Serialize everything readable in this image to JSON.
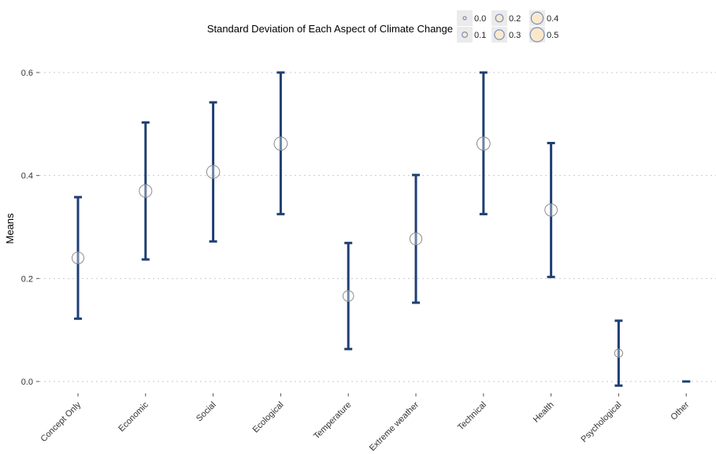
{
  "chart_data": {
    "type": "errorbar",
    "title": "",
    "xlabel": "",
    "ylabel": "Means",
    "ylim": [
      -0.0,
      0.6
    ],
    "y_ticks": [
      "0.0",
      "0.2",
      "0.4",
      "0.6"
    ],
    "y_tick_values": [
      0.0,
      0.2,
      0.4,
      0.6
    ],
    "grid": "horizontal dotted",
    "categories": [
      "Concept Only",
      "Economic",
      "Social",
      "Ecological",
      "Temperature",
      "Extreme weather",
      "Technical",
      "Health",
      "Psychological",
      "Other"
    ],
    "means": [
      0.24,
      0.37,
      0.407,
      0.462,
      0.166,
      0.277,
      0.462,
      0.333,
      0.055,
      0.0
    ],
    "lower": [
      0.122,
      0.237,
      0.272,
      0.325,
      0.063,
      0.153,
      0.325,
      0.203,
      -0.008,
      0.0
    ],
    "upper": [
      0.358,
      0.503,
      0.542,
      0.6,
      0.269,
      0.401,
      0.6,
      0.463,
      0.118,
      0.0
    ],
    "sd": [
      0.36,
      0.39,
      0.4,
      0.41,
      0.32,
      0.37,
      0.41,
      0.38,
      0.23,
      0.0
    ],
    "colors": {
      "errorbar": "#1f3f73",
      "point_stroke": "#8c8c8c",
      "grid": "#c9c9c9",
      "legend_fill": "#fde8c8",
      "legend_stroke": "#7b8fb8"
    },
    "legend": {
      "title": "Standard Deviation of Each Aspect of Climate Change",
      "placement": "top",
      "items": [
        {
          "label": "0.0",
          "value": 0.0
        },
        {
          "label": "0.1",
          "value": 0.1
        },
        {
          "label": "0.2",
          "value": 0.2
        },
        {
          "label": "0.3",
          "value": 0.3
        },
        {
          "label": "0.4",
          "value": 0.4
        },
        {
          "label": "0.5",
          "value": 0.5
        }
      ]
    }
  }
}
